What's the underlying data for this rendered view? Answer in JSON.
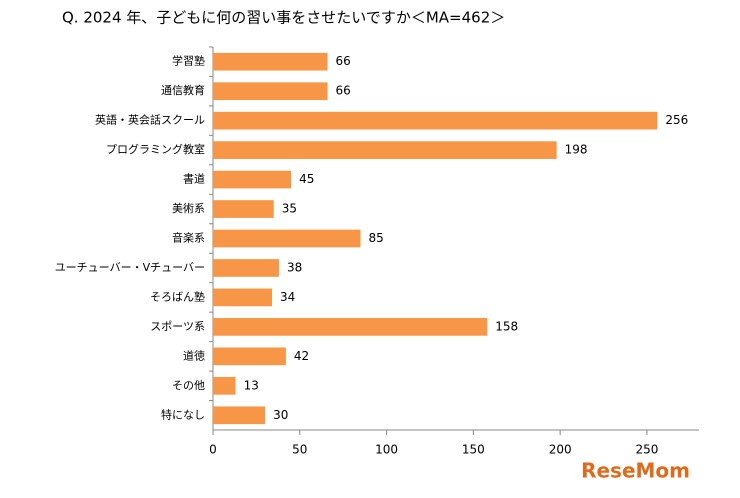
{
  "chart_data": {
    "type": "bar",
    "orientation": "horizontal",
    "title": "Q. 2024 年、子どもに何の習い事をさせたいですか＜MA=462＞",
    "categories": [
      "学習塾",
      "通信教育",
      "英語・英会話スクール",
      "プログラミング教室",
      "書道",
      "美術系",
      "音楽系",
      "ユーチューバー・Vチューバー",
      "そろばん塾",
      "スポーツ系",
      "道徳",
      "その他",
      "特になし"
    ],
    "values": [
      66,
      66,
      256,
      198,
      45,
      35,
      85,
      38,
      34,
      158,
      42,
      13,
      30
    ],
    "color": "#f79646",
    "xlim": [
      0,
      280
    ],
    "xticks": [
      0,
      50,
      100,
      150,
      200,
      250
    ],
    "grid": false,
    "watermark": "ReseMom"
  }
}
